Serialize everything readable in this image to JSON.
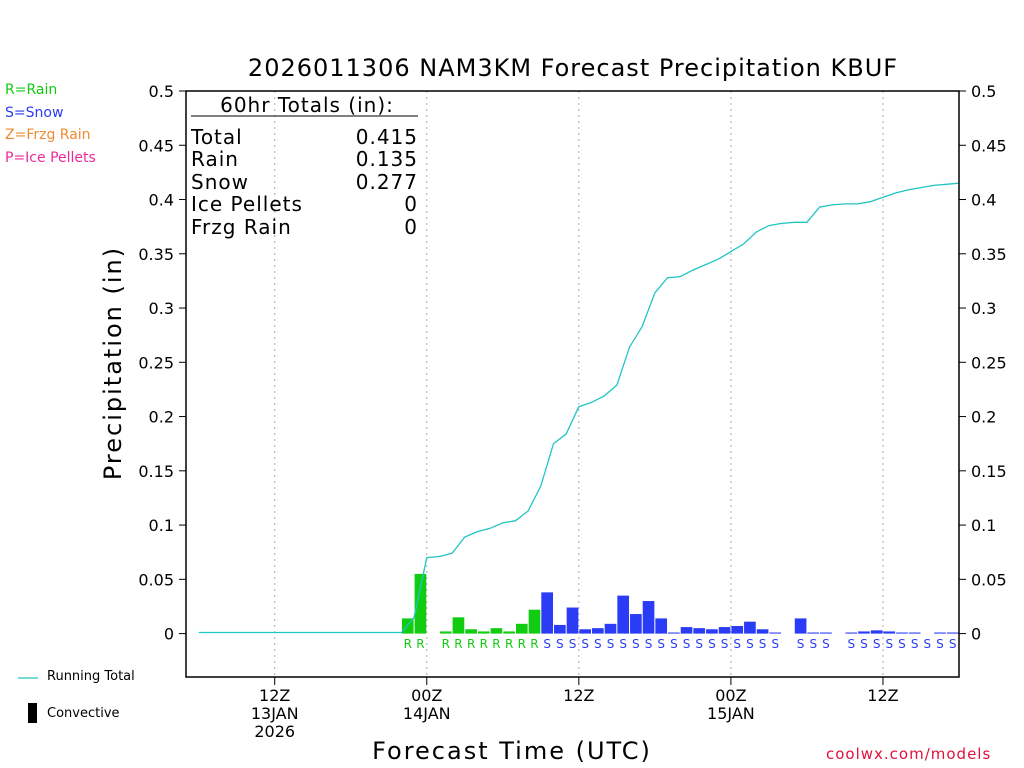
{
  "colors": {
    "rain": "#11cc11",
    "snow": "#2a3cf5",
    "frzg": "#f08a30",
    "ice": "#ee2a9a",
    "total_line": "#22c4c4",
    "grid": "#aaaaaa",
    "credit": "#e0113a"
  },
  "legend": {
    "rain": "R=Rain",
    "snow": "S=Snow",
    "frzg": "Z=Frzg Rain",
    "ice": "P=Ice Pellets"
  },
  "bottom_legend": {
    "running_total": "Running Total",
    "convective": "Convective"
  },
  "credit": "coolwx.com/models",
  "chart_data": {
    "type": "bar",
    "title": "2026011306 NAM3KM Forecast Precipitation KBUF",
    "xlabel": "Forecast Time (UTC)",
    "ylabel": "Precipitation (in)",
    "ylim": [
      -0.04,
      0.5
    ],
    "xlim_hours": [
      -1,
      60
    ],
    "yticks": [
      0,
      0.05,
      0.1,
      0.15,
      0.2,
      0.25,
      0.3,
      0.35,
      0.4,
      0.45,
      0.5
    ],
    "ytick_labels": [
      "0",
      "0.05",
      "0.1",
      "0.15",
      "0.2",
      "0.25",
      "0.3",
      "0.35",
      "0.4",
      "0.45",
      "0.5"
    ],
    "xticks": [
      {
        "hour": 6,
        "lines": [
          "12Z",
          "13JAN",
          "2026"
        ]
      },
      {
        "hour": 18,
        "lines": [
          "00Z",
          "14JAN"
        ]
      },
      {
        "hour": 30,
        "lines": [
          "12Z"
        ]
      },
      {
        "hour": 42,
        "lines": [
          "00Z",
          "15JAN"
        ]
      },
      {
        "hour": 54,
        "lines": [
          "12Z"
        ]
      }
    ],
    "totals": {
      "header": "60hr Totals (in):",
      "rows": [
        {
          "label": "Total",
          "value": "0.415"
        },
        {
          "label": "Rain",
          "value": "0.135"
        },
        {
          "label": "Snow",
          "value": "0.277"
        },
        {
          "label": "Ice Pellets",
          "value": "0"
        },
        {
          "label": "Frzg Rain",
          "value": "0"
        }
      ]
    },
    "hourly": {
      "hours": [
        17,
        18,
        19,
        20,
        21,
        22,
        23,
        24,
        25,
        26,
        27,
        28,
        29,
        30,
        31,
        32,
        33,
        34,
        35,
        36,
        37,
        38,
        39,
        40,
        41,
        42,
        43,
        44,
        45,
        46,
        47,
        48,
        49,
        50,
        51,
        52,
        53,
        54,
        55,
        56,
        57,
        58,
        59,
        60
      ],
      "values": [
        0.014,
        0.055,
        0,
        0.002,
        0.015,
        0.004,
        0.002,
        0.005,
        0.002,
        0.009,
        0.022,
        0.038,
        0.008,
        0.024,
        0.004,
        0.005,
        0.009,
        0.035,
        0.018,
        0.03,
        0.014,
        0.001,
        0.006,
        0.005,
        0.004,
        0.006,
        0.007,
        0.011,
        0.004,
        0.001,
        0,
        0.014,
        0.001,
        0.001,
        0,
        0.001,
        0.002,
        0.003,
        0.002,
        0.001,
        0.001,
        0,
        0.001,
        0.001
      ],
      "ptype": [
        "R",
        "R",
        "",
        "R",
        "R",
        "R",
        "R",
        "R",
        "R",
        "R",
        "R",
        "S",
        "S",
        "S",
        "S",
        "S",
        "S",
        "S",
        "S",
        "S",
        "S",
        "S",
        "S",
        "S",
        "S",
        "S",
        "S",
        "S",
        "S",
        "S",
        "",
        "S",
        "S",
        "S",
        "",
        "S",
        "S",
        "S",
        "S",
        "S",
        "S",
        "S",
        "S",
        "S"
      ]
    },
    "running_total": {
      "x": [
        0,
        1,
        2,
        3,
        4,
        5,
        6,
        7,
        8,
        9,
        10,
        11,
        12,
        13,
        14,
        15,
        16,
        17,
        18,
        19,
        20,
        21,
        22,
        23,
        24,
        25,
        26,
        27,
        28,
        29,
        30,
        31,
        32,
        33,
        34,
        35,
        36,
        37,
        38,
        39,
        40,
        41,
        42,
        43,
        44,
        45,
        46,
        47,
        48,
        49,
        50,
        51,
        52,
        53,
        54,
        55,
        56,
        57,
        58,
        59,
        60
      ],
      "y": [
        0.001,
        0.001,
        0.001,
        0.001,
        0.001,
        0.001,
        0.001,
        0.001,
        0.001,
        0.001,
        0.001,
        0.001,
        0.001,
        0.001,
        0.001,
        0.001,
        0.001,
        0.015,
        0.07,
        0.071,
        0.074,
        0.089,
        0.094,
        0.097,
        0.102,
        0.104,
        0.113,
        0.136,
        0.175,
        0.184,
        0.209,
        0.213,
        0.219,
        0.229,
        0.264,
        0.283,
        0.314,
        0.328,
        0.329,
        0.335,
        0.34,
        0.345,
        0.352,
        0.359,
        0.37,
        0.376,
        0.378,
        0.379,
        0.379,
        0.393,
        0.395,
        0.396,
        0.396,
        0.398,
        0.402,
        0.406,
        0.409,
        0.411,
        0.413,
        0.414,
        0.415
      ]
    }
  }
}
